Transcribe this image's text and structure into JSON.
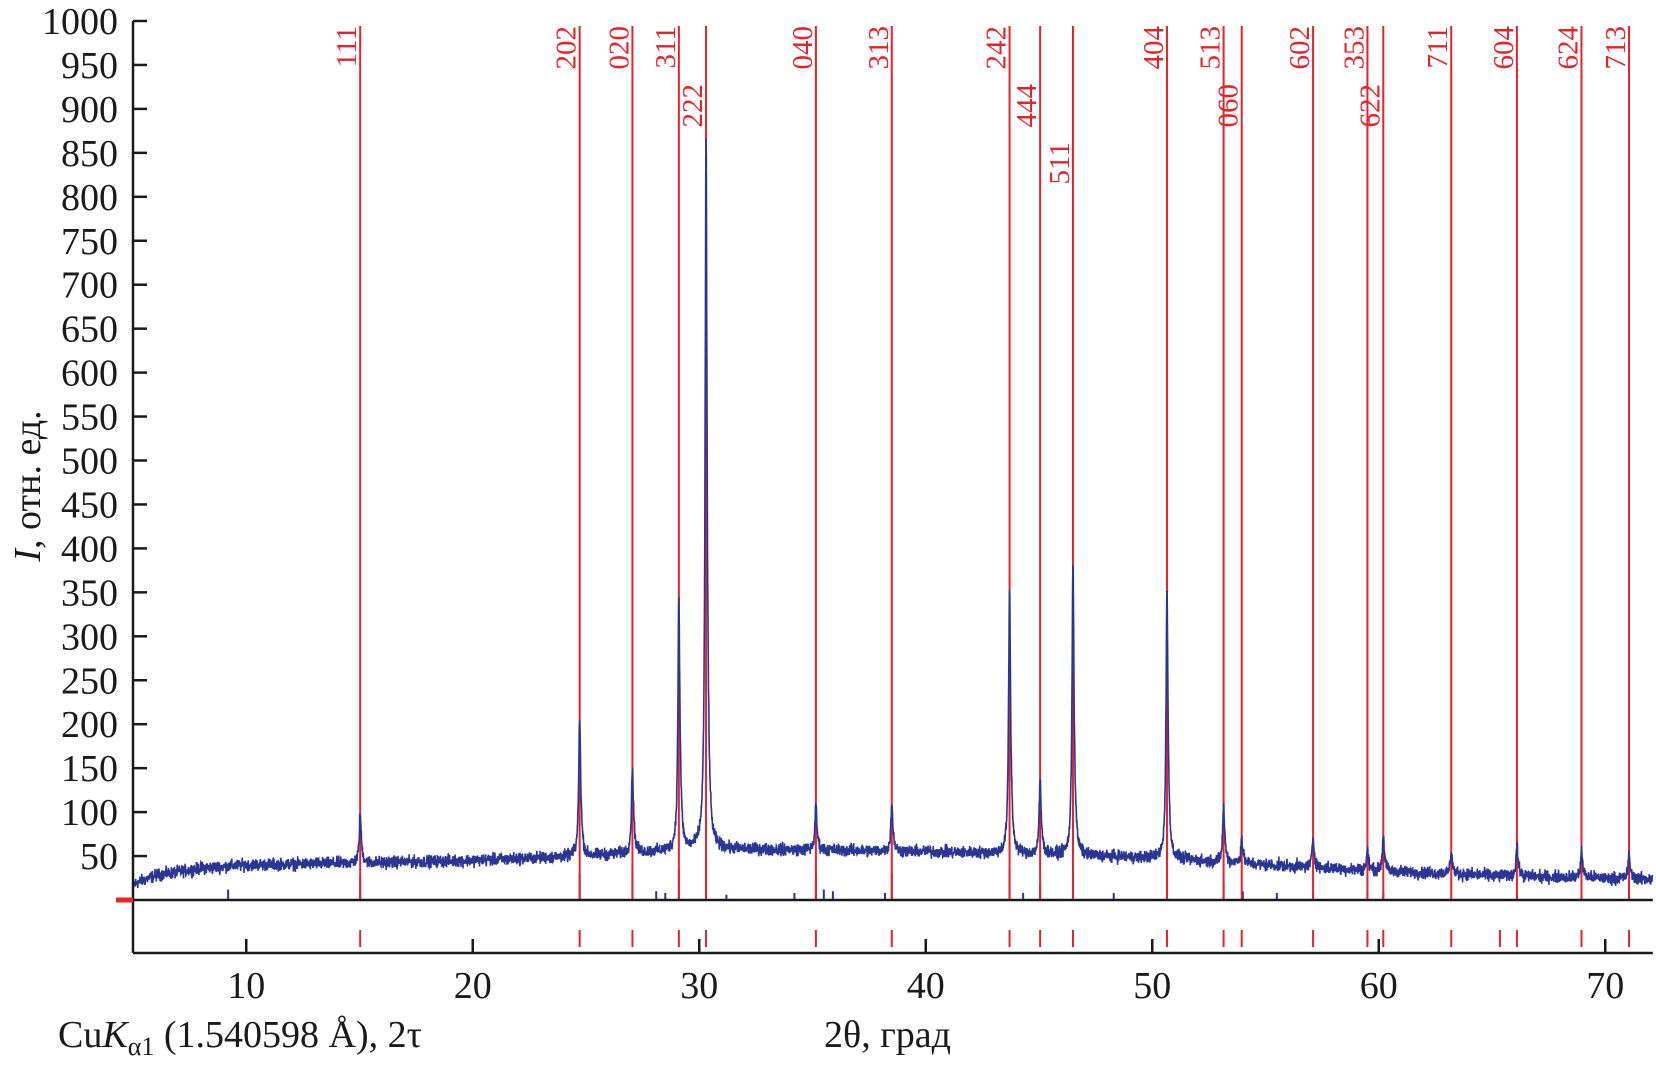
{
  "chart_data": {
    "type": "line",
    "title": "",
    "xlabel": "2θ, град",
    "ylabel_italic": "I",
    "ylabel_rest": ", отн. ед.",
    "radiation_label_main": "Cu",
    "radiation_label_k": "K",
    "radiation_label_sub": "α1",
    "radiation_label_rest": " (1.540598 Å), 2τ",
    "xlim": [
      5,
      72.1
    ],
    "ylim": [
      0,
      1000
    ],
    "xticks": [
      10,
      20,
      30,
      40,
      50,
      60,
      70
    ],
    "yticks": [
      50,
      100,
      150,
      200,
      250,
      300,
      350,
      400,
      450,
      500,
      550,
      600,
      650,
      700,
      750,
      800,
      850,
      900,
      950,
      1000
    ],
    "grid": false,
    "colors": {
      "pattern": "#2b3595",
      "reflections": "#e8222a",
      "axes": "#1a1a1a"
    },
    "background": [
      [
        5,
        18
      ],
      [
        6,
        28
      ],
      [
        8,
        36
      ],
      [
        10,
        40
      ],
      [
        15,
        42
      ],
      [
        20,
        45
      ],
      [
        25,
        50
      ],
      [
        30,
        58
      ],
      [
        35,
        57
      ],
      [
        40,
        55
      ],
      [
        45,
        52
      ],
      [
        50,
        48
      ],
      [
        55,
        40
      ],
      [
        60,
        33
      ],
      [
        65,
        28
      ],
      [
        70,
        25
      ],
      [
        72.1,
        24
      ]
    ],
    "peaks": [
      {
        "hkl": "111",
        "two_theta": 15.03,
        "intensity": 95
      },
      {
        "hkl": "202",
        "two_theta": 24.72,
        "intensity": 205
      },
      {
        "hkl": "020",
        "two_theta": 27.05,
        "intensity": 148
      },
      {
        "hkl": "311",
        "two_theta": 29.1,
        "intensity": 335
      },
      {
        "hkl": "222",
        "two_theta": 30.3,
        "intensity": 840
      },
      {
        "hkl": "040",
        "two_theta": 35.15,
        "intensity": 105
      },
      {
        "hkl": "313",
        "two_theta": 38.5,
        "intensity": 107
      },
      {
        "hkl": "242",
        "two_theta": 43.7,
        "intensity": 345
      },
      {
        "hkl": "444",
        "two_theta": 45.05,
        "intensity": 133
      },
      {
        "hkl": "511",
        "two_theta": 46.5,
        "intensity": 375
      },
      {
        "hkl": "404",
        "two_theta": 50.65,
        "intensity": 340
      },
      {
        "hkl": "513",
        "two_theta": 53.15,
        "intensity": 105
      },
      {
        "hkl": "060",
        "two_theta": 53.95,
        "intensity": 70
      },
      {
        "hkl": "602",
        "two_theta": 57.1,
        "intensity": 70
      },
      {
        "hkl": "353",
        "two_theta": 59.5,
        "intensity": 55
      },
      {
        "hkl": "622",
        "two_theta": 60.2,
        "intensity": 72
      },
      {
        "hkl": "711",
        "two_theta": 63.2,
        "intensity": 55
      },
      {
        "hkl": "604",
        "two_theta": 66.1,
        "intensity": 62
      },
      {
        "hkl": "624",
        "two_theta": 68.95,
        "intensity": 55
      },
      {
        "hkl": "713",
        "two_theta": 71.05,
        "intensity": 50
      }
    ],
    "extra_reflection_ticks": [
      65.35
    ],
    "reference_sticks": [
      [
        9.2,
        12
      ],
      [
        15.03,
        25
      ],
      [
        24.72,
        30
      ],
      [
        27.05,
        35
      ],
      [
        28.1,
        10
      ],
      [
        28.5,
        8
      ],
      [
        29.1,
        35
      ],
      [
        30.3,
        45
      ],
      [
        31.2,
        6
      ],
      [
        34.2,
        8
      ],
      [
        35.15,
        30
      ],
      [
        35.5,
        12
      ],
      [
        35.9,
        10
      ],
      [
        38.2,
        8
      ],
      [
        38.5,
        30
      ],
      [
        43.7,
        35
      ],
      [
        44.3,
        8
      ],
      [
        45.05,
        20
      ],
      [
        46.5,
        35
      ],
      [
        48.3,
        8
      ],
      [
        50.65,
        35
      ],
      [
        53.15,
        20
      ],
      [
        54.0,
        10
      ],
      [
        55.5,
        8
      ],
      [
        57.1,
        8
      ],
      [
        59.5,
        10
      ],
      [
        60.2,
        8
      ],
      [
        66.1,
        8
      ],
      [
        68.95,
        8
      ],
      [
        71.05,
        8
      ]
    ]
  }
}
